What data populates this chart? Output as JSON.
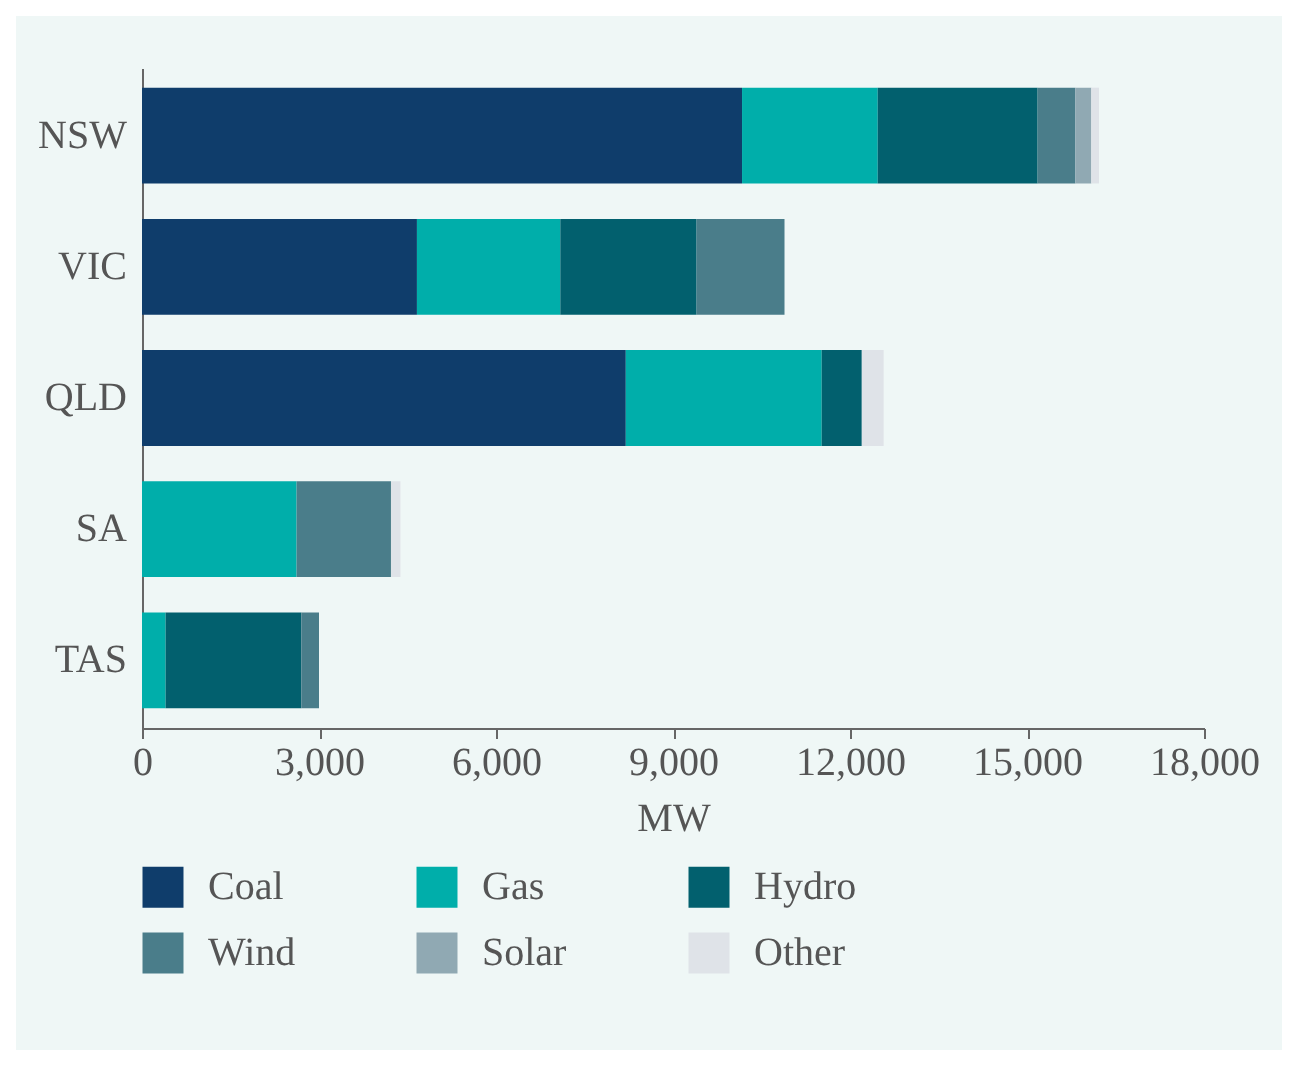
{
  "chart_data": {
    "type": "bar",
    "orientation": "horizontal",
    "stacked": true,
    "xlabel": "MW",
    "categories": [
      "NSW",
      "VIC",
      "QLD",
      "SA",
      "TAS"
    ],
    "series": [
      {
        "name": "Coal",
        "color": "#0f3d6b",
        "values": [
          10170,
          4660,
          8200,
          0,
          0
        ]
      },
      {
        "name": "Gas",
        "color": "#00aeaa",
        "values": [
          2300,
          2430,
          3320,
          2620,
          400
        ]
      },
      {
        "name": "Hydro",
        "color": "#02606e",
        "values": [
          2710,
          2310,
          680,
          0,
          2300
        ]
      },
      {
        "name": "Wind",
        "color": "#4a7d8a",
        "values": [
          640,
          1490,
          0,
          1600,
          300
        ]
      },
      {
        "name": "Solar",
        "color": "#90a9b3",
        "values": [
          270,
          0,
          0,
          0,
          0
        ]
      },
      {
        "name": "Other",
        "color": "#dfe3e8",
        "values": [
          130,
          null,
          370,
          160,
          0
        ]
      }
    ],
    "xlim": [
      0,
      18000
    ],
    "xticks": [
      0,
      {
        "value": 3000,
        "label": "3,000"
      },
      {
        "value": 6000,
        "label": "6,000"
      },
      {
        "value": 9000,
        "label": "9,000"
      },
      {
        "value": 12000,
        "label": "12,000"
      },
      {
        "value": 15000,
        "label": "15,000"
      },
      {
        "value": 18000,
        "label": "18,000"
      }
    ],
    "grid": false,
    "legend": "bottom"
  }
}
